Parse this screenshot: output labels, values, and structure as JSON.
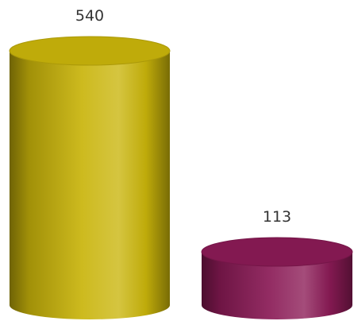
{
  "chart_data": {
    "type": "bar",
    "style": "3d-cylinder",
    "title": "",
    "xlabel": "",
    "ylabel": "",
    "grid": false,
    "legend": "none",
    "ylim": [
      0,
      540
    ],
    "bars": [
      {
        "value": 540,
        "label": "540",
        "color": "#c9b40a"
      },
      {
        "value": 113,
        "label": "113",
        "color": "#8a1a55"
      }
    ]
  }
}
